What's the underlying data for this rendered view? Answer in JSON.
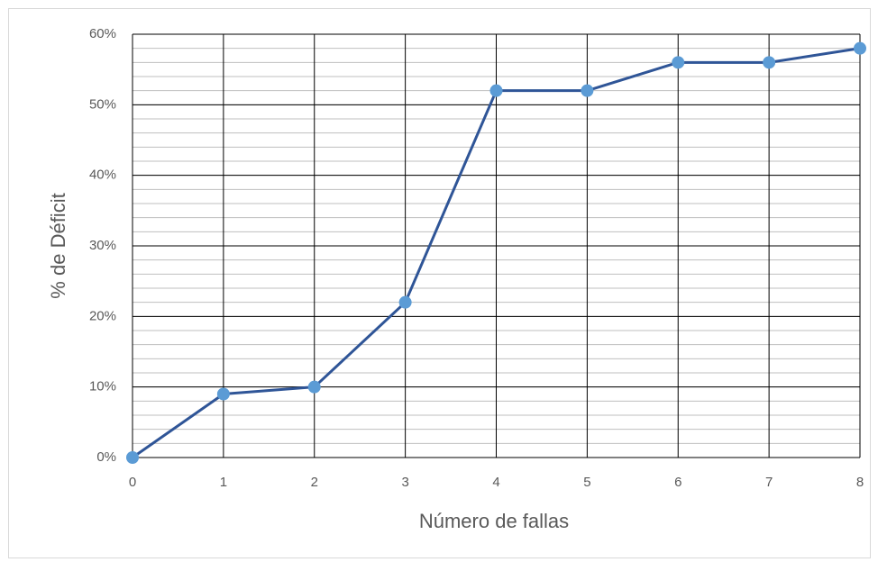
{
  "chart_data": {
    "type": "line",
    "xlabel": "Número de fallas",
    "ylabel": "% de Déficit",
    "x": [
      0,
      1,
      2,
      3,
      4,
      5,
      6,
      7,
      8
    ],
    "values": [
      0,
      9,
      10,
      22,
      52,
      52,
      56,
      56,
      58
    ],
    "color": "#2f5597",
    "marker_color": "#5b9bd5",
    "xlim": [
      0,
      8
    ],
    "xticks": [
      0,
      1,
      2,
      3,
      4,
      5,
      6,
      7,
      8
    ],
    "ylim": [
      0,
      60
    ],
    "yticks": [
      {
        "value": 0,
        "label": "0%"
      },
      {
        "value": 10,
        "label": "10%"
      },
      {
        "value": 20,
        "label": "20%"
      },
      {
        "value": 30,
        "label": "30%"
      },
      {
        "value": 40,
        "label": "40%"
      },
      {
        "value": 50,
        "label": "50%"
      },
      {
        "value": 60,
        "label": "60%"
      }
    ],
    "y_minor_step": 2,
    "grid": true
  }
}
